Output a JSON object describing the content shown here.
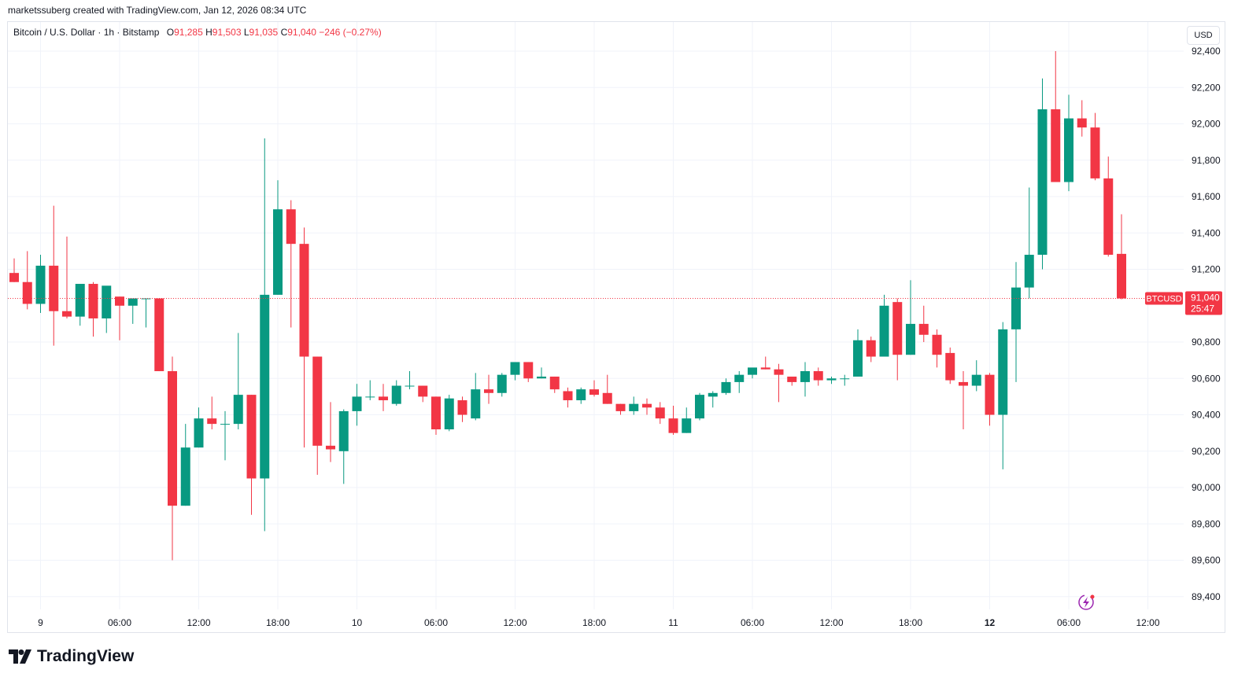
{
  "credit": "marketssuberg created with TradingView.com, Jan 12, 2026 08:34 UTC",
  "legend": {
    "symbol": "Bitcoin / U.S. Dollar · 1h · Bitstamp",
    "o_label": "O",
    "o_value": "91,285",
    "h_label": "H",
    "h_value": "91,503",
    "l_label": "L",
    "l_value": "91,035",
    "c_label": "C",
    "c_value": "91,040",
    "change": "−246 (−0.27%)"
  },
  "currency": "USD",
  "ticker_label": "BTCUSD",
  "price_label": "91,040",
  "countdown": "25:47",
  "brand": "TradingView",
  "colors": {
    "up": "#089981",
    "down": "#f23645",
    "grid": "#f0f3fa",
    "text": "#131722"
  },
  "icons": [
    "tradingview-logo-icon",
    "lightning-icon",
    "currency-button"
  ],
  "chart_data": {
    "type": "candlestick",
    "interval": "1h",
    "y_ticks": [
      "89,400",
      "89,600",
      "89,800",
      "90,000",
      "90,200",
      "90,400",
      "90,600",
      "90,800",
      "91,200",
      "91,400",
      "91,600",
      "91,800",
      "92,000",
      "92,200",
      "92,400"
    ],
    "x_ticks": [
      {
        "label": "9",
        "bold": false,
        "hour_index": 2
      },
      {
        "label": "06:00",
        "bold": false,
        "hour_index": 8
      },
      {
        "label": "12:00",
        "bold": false,
        "hour_index": 14
      },
      {
        "label": "18:00",
        "bold": false,
        "hour_index": 20
      },
      {
        "label": "10",
        "bold": false,
        "hour_index": 26
      },
      {
        "label": "06:00",
        "bold": false,
        "hour_index": 32
      },
      {
        "label": "12:00",
        "bold": false,
        "hour_index": 38
      },
      {
        "label": "18:00",
        "bold": false,
        "hour_index": 44
      },
      {
        "label": "11",
        "bold": false,
        "hour_index": 50
      },
      {
        "label": "06:00",
        "bold": false,
        "hour_index": 56
      },
      {
        "label": "12:00",
        "bold": false,
        "hour_index": 62
      },
      {
        "label": "18:00",
        "bold": false,
        "hour_index": 68
      },
      {
        "label": "12",
        "bold": true,
        "hour_index": 74
      },
      {
        "label": "06:00",
        "bold": false,
        "hour_index": 80
      },
      {
        "label": "12:00",
        "bold": false,
        "hour_index": 86
      }
    ],
    "y_range": [
      89330,
      92560
    ],
    "last_price": 91040,
    "candles": [
      [
        91180,
        91260,
        91130,
        91130
      ],
      [
        91130,
        91300,
        90980,
        91010
      ],
      [
        91010,
        91280,
        90960,
        91220
      ],
      [
        91220,
        91550,
        90780,
        90970
      ],
      [
        90970,
        91380,
        90930,
        90940
      ],
      [
        90940,
        91110,
        90890,
        91120
      ],
      [
        91120,
        91130,
        90830,
        90930
      ],
      [
        90930,
        91100,
        90850,
        91110
      ],
      [
        91050,
        91050,
        90810,
        91000
      ],
      [
        91000,
        91030,
        90900,
        91040
      ],
      [
        91040,
        91040,
        90880,
        91040
      ],
      [
        91040,
        91040,
        90640,
        90640
      ],
      [
        90640,
        90720,
        89600,
        89900
      ],
      [
        89900,
        90350,
        89900,
        90220
      ],
      [
        90220,
        90440,
        90220,
        90380
      ],
      [
        90380,
        90500,
        90320,
        90350
      ],
      [
        90350,
        90420,
        90150,
        90350
      ],
      [
        90350,
        90850,
        90320,
        90510
      ],
      [
        90510,
        90510,
        89850,
        90050
      ],
      [
        90050,
        91920,
        89760,
        91060
      ],
      [
        91060,
        91690,
        91060,
        91530
      ],
      [
        91530,
        91580,
        90880,
        91340
      ],
      [
        91340,
        91430,
        90220,
        90720
      ],
      [
        90720,
        90720,
        90070,
        90230
      ],
      [
        90230,
        90470,
        90140,
        90210
      ],
      [
        90200,
        90430,
        90020,
        90420
      ],
      [
        90420,
        90570,
        90340,
        90500
      ],
      [
        90500,
        90590,
        90480,
        90500
      ],
      [
        90500,
        90570,
        90420,
        90480
      ],
      [
        90460,
        90590,
        90450,
        90560
      ],
      [
        90560,
        90640,
        90540,
        90560
      ],
      [
        90560,
        90560,
        90470,
        90500
      ],
      [
        90500,
        90500,
        90290,
        90320
      ],
      [
        90320,
        90510,
        90310,
        90490
      ],
      [
        90480,
        90500,
        90360,
        90400
      ],
      [
        90380,
        90630,
        90370,
        90540
      ],
      [
        90540,
        90620,
        90460,
        90520
      ],
      [
        90520,
        90630,
        90500,
        90620
      ],
      [
        90620,
        90690,
        90590,
        90690
      ],
      [
        90690,
        90690,
        90580,
        90600
      ],
      [
        90600,
        90660,
        90600,
        90610
      ],
      [
        90610,
        90610,
        90520,
        90540
      ],
      [
        90530,
        90550,
        90440,
        90480
      ],
      [
        90480,
        90550,
        90460,
        90540
      ],
      [
        90540,
        90590,
        90500,
        90510
      ],
      [
        90520,
        90620,
        90460,
        90460
      ],
      [
        90460,
        90460,
        90400,
        90420
      ],
      [
        90420,
        90500,
        90400,
        90460
      ],
      [
        90460,
        90490,
        90400,
        90440
      ],
      [
        90440,
        90470,
        90350,
        90380
      ],
      [
        90380,
        90450,
        90290,
        90300
      ],
      [
        90300,
        90440,
        90300,
        90380
      ],
      [
        90380,
        90520,
        90370,
        90510
      ],
      [
        90500,
        90530,
        90440,
        90520
      ],
      [
        90520,
        90600,
        90510,
        90580
      ],
      [
        90580,
        90640,
        90520,
        90620
      ],
      [
        90620,
        90650,
        90600,
        90660
      ],
      [
        90660,
        90720,
        90650,
        90650
      ],
      [
        90650,
        90680,
        90470,
        90620
      ],
      [
        90610,
        90600,
        90560,
        90580
      ],
      [
        90580,
        90690,
        90500,
        90640
      ],
      [
        90640,
        90660,
        90560,
        90590
      ],
      [
        90590,
        90610,
        90570,
        90600
      ],
      [
        90600,
        90620,
        90560,
        90600
      ],
      [
        90610,
        90870,
        90610,
        90810
      ],
      [
        90810,
        90830,
        90690,
        90720
      ],
      [
        90720,
        91060,
        90720,
        91000
      ],
      [
        91020,
        91040,
        90590,
        90730
      ],
      [
        90730,
        91140,
        90730,
        90900
      ],
      [
        90900,
        91000,
        90800,
        90840
      ],
      [
        90840,
        90870,
        90660,
        90730
      ],
      [
        90740,
        90770,
        90570,
        90590
      ],
      [
        90580,
        90640,
        90320,
        90560
      ],
      [
        90560,
        90700,
        90530,
        90620
      ],
      [
        90620,
        90630,
        90340,
        90400
      ],
      [
        90400,
        90910,
        90100,
        90870
      ],
      [
        90870,
        91240,
        90580,
        91100
      ],
      [
        91100,
        91650,
        91040,
        91280
      ],
      [
        91280,
        92250,
        91200,
        92080
      ],
      [
        92080,
        92400,
        91680,
        91680
      ],
      [
        91680,
        92160,
        91630,
        92030
      ],
      [
        92030,
        92130,
        91930,
        91980
      ],
      [
        91980,
        92060,
        91690,
        91700
      ],
      [
        91700,
        91820,
        91270,
        91280
      ],
      [
        91285,
        91503,
        91035,
        91040
      ]
    ]
  }
}
